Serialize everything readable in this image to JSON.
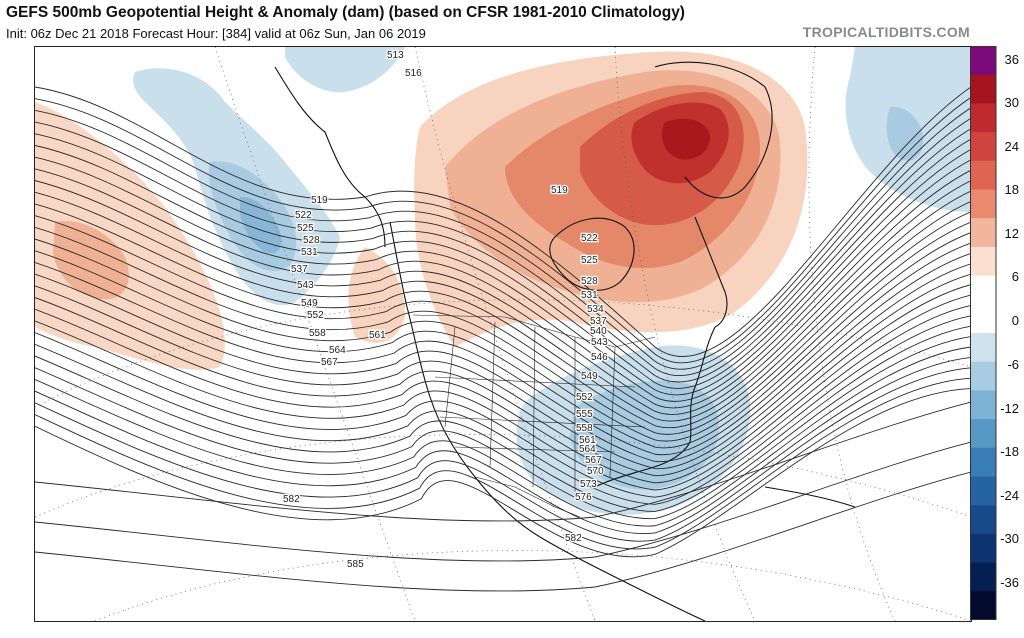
{
  "header": {
    "title": "GEFS 500mb Geopotential Height & Anomaly (dam) (based on CFSR 1981-2010 Climatology)",
    "subtitle": "Init: 06z Dec 21 2018   Forecast Hour: [384]   valid at 06z Sun, Jan 06 2019",
    "credit": "TROPICALTIDBITS.COM"
  },
  "colorbar": {
    "labels": [
      "36",
      "30",
      "24",
      "18",
      "12",
      "6",
      "0",
      "-6",
      "-12",
      "-18",
      "-24",
      "-30",
      "-36"
    ],
    "colors": [
      "#7b0a7b",
      "#a3141e",
      "#be2a2f",
      "#d0443f",
      "#dd6552",
      "#e9896f",
      "#f3b59c",
      "#fbe0d2",
      "#ffffff",
      "#ffffff",
      "#cfe3ef",
      "#a8cce2",
      "#7fb3d6",
      "#5898c6",
      "#3a7db6",
      "#2563a3",
      "#174a8b",
      "#0c3470",
      "#061f52",
      "#020a2f"
    ]
  },
  "map": {
    "anomaly_colors": {
      "neg1": "#c9dfec",
      "neg2": "#a8cbe2",
      "neg3": "#88b6d7",
      "pos1": "#f8d3bf",
      "pos2": "#f0b093",
      "pos3": "#e58769",
      "pos4": "#d65a48",
      "pos5": "#c0302d",
      "pos6": "#a8181d"
    },
    "contour_labels": [
      {
        "text": "513"
      },
      {
        "text": "516"
      },
      {
        "text": "519"
      },
      {
        "text": "522"
      },
      {
        "text": "525"
      },
      {
        "text": "528"
      },
      {
        "text": "531"
      },
      {
        "text": "537"
      },
      {
        "text": "543"
      },
      {
        "text": "549"
      },
      {
        "text": "552"
      },
      {
        "text": "558"
      },
      {
        "text": "561"
      },
      {
        "text": "564"
      },
      {
        "text": "567"
      },
      {
        "text": "561"
      },
      {
        "text": "519"
      },
      {
        "text": "522"
      },
      {
        "text": "525"
      },
      {
        "text": "528"
      },
      {
        "text": "531"
      },
      {
        "text": "534"
      },
      {
        "text": "537"
      },
      {
        "text": "540"
      },
      {
        "text": "543"
      },
      {
        "text": "546"
      },
      {
        "text": "549"
      },
      {
        "text": "552"
      },
      {
        "text": "555"
      },
      {
        "text": "558"
      },
      {
        "text": "561"
      },
      {
        "text": "564"
      },
      {
        "text": "567"
      },
      {
        "text": "570"
      },
      {
        "text": "573"
      },
      {
        "text": "576"
      },
      {
        "text": "582"
      },
      {
        "text": "582"
      },
      {
        "text": "585"
      }
    ]
  }
}
